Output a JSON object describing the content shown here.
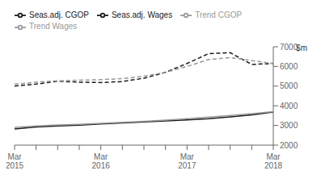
{
  "chart_data": {
    "type": "line",
    "ylabel": "$m",
    "categories": [
      "Mar\n2015",
      null,
      null,
      null,
      "Mar\n2016",
      null,
      null,
      null,
      "Mar\n2017",
      null,
      null,
      null,
      "Mar\n2018"
    ],
    "series": [
      {
        "name": "Seas.adj. Wages",
        "color": "#1a1a1a",
        "line_style": "solid",
        "values": [
          2820,
          2920,
          2970,
          3010,
          3080,
          3130,
          3180,
          3230,
          3280,
          3340,
          3430,
          3540,
          3680
        ]
      },
      {
        "name": "Trend Wages",
        "color": "#999999",
        "line_style": "solid",
        "values": [
          2900,
          2970,
          3020,
          3060,
          3110,
          3160,
          3210,
          3270,
          3340,
          3420,
          3510,
          3600,
          3700
        ]
      },
      {
        "name": "Seas.adj. CGOP",
        "color": "#1a1a1a",
        "line_style": "dashed",
        "values": [
          5000,
          5100,
          5250,
          5200,
          5180,
          5230,
          5400,
          5700,
          6150,
          6650,
          6700,
          6100,
          6150
        ]
      },
      {
        "name": "Trend CGOP",
        "color": "#999999",
        "line_style": "dashed",
        "values": [
          5100,
          5200,
          5270,
          5300,
          5330,
          5380,
          5500,
          5700,
          6000,
          6350,
          6450,
          6300,
          6150
        ]
      }
    ],
    "ylim": [
      2000,
      7000
    ],
    "yticks": [
      2000,
      3000,
      4000,
      5000,
      6000,
      7000
    ],
    "grid": false,
    "legend": "upper left"
  }
}
